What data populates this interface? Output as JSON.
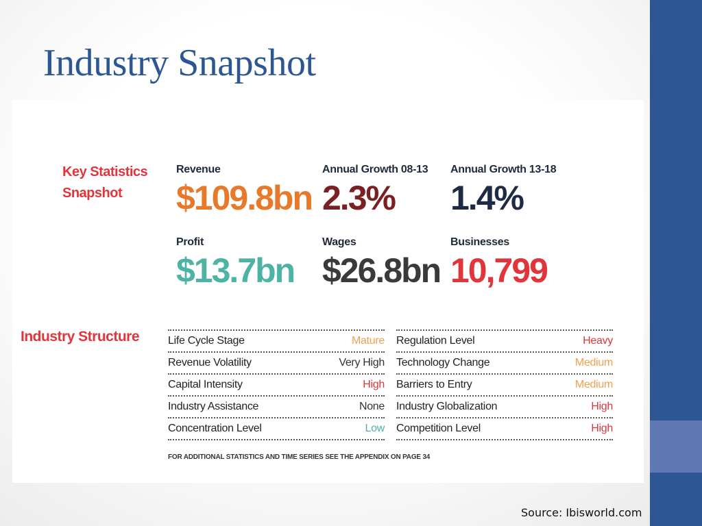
{
  "slide": {
    "title": "Industry Snapshot",
    "source": "Source: Ibisworld.com"
  },
  "key_statistics": {
    "heading_line1": "Key Statistics",
    "heading_line2": "Snapshot",
    "items": [
      {
        "label": "Revenue",
        "value": "$109.8bn",
        "color": "#e8782a"
      },
      {
        "label": "Annual Growth 08-13",
        "value": "2.3%",
        "color": "#7a1f22"
      },
      {
        "label": "Annual Growth 13-18",
        "value": "1.4%",
        "color": "#1f2b44"
      },
      {
        "label": "Profit",
        "value": "$13.7bn",
        "color": "#4db3a4"
      },
      {
        "label": "Wages",
        "value": "$26.8bn",
        "color": "#3a3a3a"
      },
      {
        "label": "Businesses",
        "value": "10,799",
        "color": "#e0353a"
      }
    ]
  },
  "industry_structure": {
    "heading": "Industry Structure",
    "left": [
      {
        "label": "Life Cycle Stage",
        "value": "Mature",
        "color": "#f0a050"
      },
      {
        "label": "Revenue Volatility",
        "value": "Very High",
        "color": "#333333"
      },
      {
        "label": "Capital Intensity",
        "value": "High",
        "color": "#e0353a"
      },
      {
        "label": "Industry Assistance",
        "value": "None",
        "color": "#333333"
      },
      {
        "label": "Concentration Level",
        "value": "Low",
        "color": "#4db3a4"
      }
    ],
    "right": [
      {
        "label": "Regulation Level",
        "value": "Heavy",
        "color": "#e0353a"
      },
      {
        "label": "Technology Change",
        "value": "Medium",
        "color": "#f0a050"
      },
      {
        "label": "Barriers to Entry",
        "value": "Medium",
        "color": "#f0a050"
      },
      {
        "label": "Industry Globalization",
        "value": "High",
        "color": "#e0353a"
      },
      {
        "label": "Competition Level",
        "value": "High",
        "color": "#e0353a"
      }
    ],
    "footnote": "FOR ADDITIONAL STATISTICS AND TIME SERIES SEE THE APPENDIX ON PAGE 34"
  },
  "colors": {
    "title": "#2c5793",
    "side_bar": "#2c5793",
    "side_accent": "#6078b4",
    "section_label": "#e0353a"
  }
}
